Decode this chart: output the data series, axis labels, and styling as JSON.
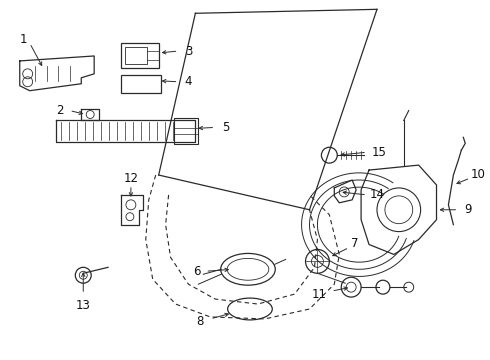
{
  "bg_color": "#ffffff",
  "line_color": "#2a2a2a",
  "label_color": "#111111",
  "figsize": [
    4.9,
    3.6
  ],
  "dpi": 100
}
